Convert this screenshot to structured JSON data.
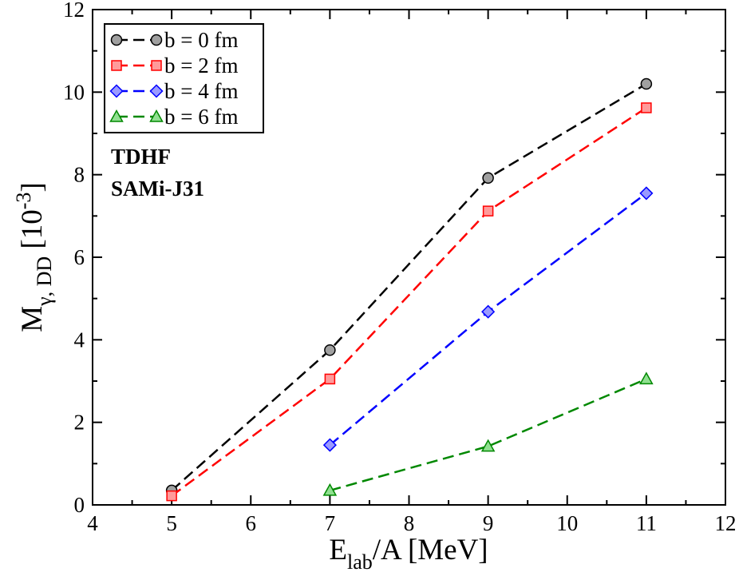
{
  "chart_data": {
    "type": "line",
    "title": "",
    "xlabel": {
      "main": "E",
      "sub": "lab",
      "rest": "/A [MeV]"
    },
    "ylabel": {
      "main": "M",
      "sub": "γ, DD",
      "rest": " [10",
      "sup": "-3",
      "close": "]"
    },
    "xlim": [
      4,
      12
    ],
    "ylim": [
      0,
      12
    ],
    "xticks": [
      4,
      5,
      6,
      7,
      8,
      9,
      10,
      11,
      12
    ],
    "yticks": [
      0,
      2,
      4,
      6,
      8,
      10,
      12
    ],
    "grid": false,
    "legend_position": "top-left",
    "series": [
      {
        "name": "b = 0 fm",
        "color": "#000000",
        "fill": "#a0a0a0",
        "marker": "circle",
        "x": [
          5,
          7,
          9,
          11
        ],
        "y": [
          0.35,
          3.75,
          7.92,
          10.2
        ]
      },
      {
        "name": "b = 2 fm",
        "color": "#ff0000",
        "fill": "#ff9a9a",
        "marker": "square",
        "x": [
          5,
          7,
          9,
          11
        ],
        "y": [
          0.22,
          3.05,
          7.12,
          9.62
        ]
      },
      {
        "name": "b = 4 fm",
        "color": "#0000ff",
        "fill": "#9a9aff",
        "marker": "diamond",
        "x": [
          7,
          9,
          11
        ],
        "y": [
          1.45,
          4.68,
          7.55
        ]
      },
      {
        "name": "b = 6 fm",
        "color": "#008800",
        "fill": "#90e090",
        "marker": "triangle",
        "x": [
          7,
          9,
          11
        ],
        "y": [
          0.35,
          1.42,
          3.05
        ]
      }
    ],
    "annotations": [
      "TDHF",
      "SAMi-J31"
    ]
  }
}
